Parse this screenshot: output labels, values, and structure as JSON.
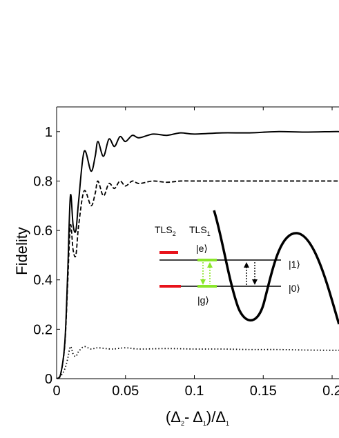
{
  "chart_data": {
    "type": "line",
    "title": "",
    "xlabel": "(Δ2- Δ1)/Δ1",
    "xlabel_parts": {
      "a": "(Δ",
      "a_sub": "2",
      "b": "- Δ",
      "b_sub": "1",
      "c": ")/Δ",
      "c_sub": "1"
    },
    "ylabel": "Fidelity",
    "xlim": [
      0,
      0.205
    ],
    "ylim": [
      0,
      1.1
    ],
    "x_tick_labels": [
      "0",
      "0.05",
      "0.1",
      "0.15",
      "0.2"
    ],
    "y_tick_labels": [
      "0",
      "0.2",
      "0.4",
      "0.6",
      "0.8",
      "1"
    ],
    "x_ticks": [
      0,
      0.05,
      0.1,
      0.15,
      0.2
    ],
    "y_ticks": [
      0,
      0.2,
      0.4,
      0.6,
      0.8,
      1.0
    ],
    "series": [
      {
        "style": "solid",
        "x": [
          0,
          0.003,
          0.006,
          0.008,
          0.01,
          0.012,
          0.014,
          0.016,
          0.02,
          0.025,
          0.028,
          0.03,
          0.034,
          0.038,
          0.042,
          0.046,
          0.05,
          0.055,
          0.06,
          0.07,
          0.08,
          0.09,
          0.1,
          0.12,
          0.14,
          0.16,
          0.18,
          0.2,
          0.205
        ],
        "y": [
          0,
          0.02,
          0.15,
          0.42,
          0.74,
          0.62,
          0.6,
          0.72,
          0.92,
          0.84,
          0.9,
          0.96,
          0.9,
          0.97,
          0.94,
          0.98,
          0.96,
          0.985,
          0.975,
          0.99,
          0.985,
          0.995,
          0.99,
          0.995,
          0.995,
          1.0,
          0.998,
          1.0,
          1.0
        ]
      },
      {
        "style": "dashed",
        "x": [
          0,
          0.003,
          0.006,
          0.008,
          0.01,
          0.012,
          0.014,
          0.016,
          0.02,
          0.025,
          0.028,
          0.03,
          0.034,
          0.038,
          0.042,
          0.046,
          0.05,
          0.055,
          0.06,
          0.07,
          0.08,
          0.09,
          0.1,
          0.12,
          0.14,
          0.16,
          0.18,
          0.2,
          0.205
        ],
        "y": [
          0,
          0.02,
          0.14,
          0.38,
          0.62,
          0.52,
          0.5,
          0.62,
          0.76,
          0.7,
          0.75,
          0.8,
          0.74,
          0.79,
          0.77,
          0.8,
          0.78,
          0.8,
          0.79,
          0.8,
          0.795,
          0.8,
          0.8,
          0.8,
          0.8,
          0.8,
          0.8,
          0.8,
          0.8
        ]
      },
      {
        "style": "dotted",
        "x": [
          0,
          0.003,
          0.006,
          0.008,
          0.01,
          0.012,
          0.014,
          0.016,
          0.02,
          0.025,
          0.03,
          0.04,
          0.05,
          0.06,
          0.08,
          0.1,
          0.12,
          0.14,
          0.16,
          0.18,
          0.2,
          0.205
        ],
        "y": [
          0,
          0.01,
          0.04,
          0.08,
          0.13,
          0.1,
          0.09,
          0.11,
          0.13,
          0.12,
          0.125,
          0.12,
          0.125,
          0.12,
          0.122,
          0.12,
          0.12,
          0.118,
          0.118,
          0.116,
          0.115,
          0.115
        ]
      }
    ],
    "grid": false,
    "legend": "none",
    "inset": {
      "label_tls2": "TLS2",
      "label_tls2_main": "TLS",
      "label_tls2_sub": "2",
      "label_tls1_main": "TLS",
      "label_tls1_sub": "1",
      "state_e": "|e⟩",
      "state_g": "|g⟩",
      "state_1": "|1⟩",
      "state_0": "|0⟩"
    },
    "colors": {
      "line": "#000000",
      "tls_marker": "#e8121b",
      "tls_level": "#8ae62a"
    }
  }
}
